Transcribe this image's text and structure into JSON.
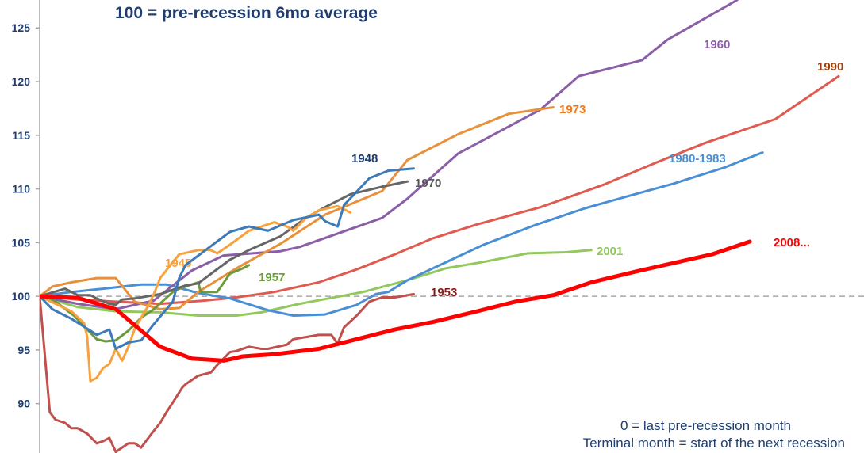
{
  "chart_data": {
    "type": "line",
    "subtitle": "100 = pre-recession 6mo average",
    "annotations": [
      "0 = last pre-recession month",
      "Terminal month = start of the next recession"
    ],
    "xlim": [
      0,
      130
    ],
    "ylim": [
      85.4,
      127.6
    ],
    "yticks": [
      90,
      95,
      100,
      105,
      110,
      115,
      120,
      125
    ],
    "reference_line": 100,
    "grid": false,
    "series": [
      {
        "name": "1953",
        "color": "#c0504d",
        "label_color": "#8b1a1a",
        "width": 3,
        "x": [
          0,
          1.6,
          2.5,
          4,
          5,
          6,
          7.5,
          9,
          10,
          11,
          12,
          14,
          15,
          16,
          17.5,
          19,
          20,
          21,
          22.5,
          23,
          25,
          27,
          28,
          30,
          31,
          33,
          35,
          36,
          39,
          40,
          42,
          44,
          46,
          47,
          48,
          50,
          52,
          54,
          56,
          59
        ],
        "y": [
          100,
          89.2,
          88.5,
          88.2,
          87.7,
          87.7,
          87.2,
          86.3,
          86.5,
          86.8,
          85.5,
          86.3,
          86.3,
          85.9,
          87.1,
          88.2,
          89.2,
          90.1,
          91.5,
          91.8,
          92.6,
          92.9,
          93.6,
          94.8,
          94.9,
          95.3,
          95.1,
          95.1,
          95.5,
          96,
          96.2,
          96.4,
          96.4,
          95.6,
          97.1,
          98.2,
          99.5,
          99.9,
          99.9,
          100.2
        ]
      },
      {
        "name": "2001",
        "color": "#92c85c",
        "label_color": "#8fc65a",
        "width": 3,
        "x": [
          0,
          6,
          12,
          19,
          25,
          31,
          35,
          41,
          51,
          58,
          64,
          70,
          77,
          83,
          87
        ],
        "y": [
          100,
          99,
          98.6,
          98.5,
          98.2,
          98.2,
          98.5,
          99.3,
          100.4,
          101.5,
          102.6,
          103.2,
          104,
          104.1,
          104.3
        ]
      },
      {
        "name": "1990",
        "color": "#e05a50",
        "label_color": "#a0410d",
        "width": 3,
        "x": [
          0,
          6,
          12,
          19,
          26,
          31,
          37,
          44,
          50,
          56,
          62,
          69,
          79,
          89,
          97,
          105,
          116,
          126
        ],
        "y": [
          100,
          99.7,
          99.5,
          99.3,
          99.6,
          99.9,
          100.4,
          101.3,
          102.5,
          103.9,
          105.4,
          106.7,
          108.3,
          110.4,
          112.4,
          114.3,
          116.5,
          120.5
        ]
      },
      {
        "name": "1980-1983",
        "color": "#4a8fd4",
        "label_color": "#4a8fd4",
        "width": 3,
        "x": [
          0,
          5,
          10,
          16,
          20,
          25,
          30,
          36,
          40,
          45,
          50,
          53,
          55,
          58,
          62,
          70,
          78,
          86,
          92,
          100,
          108,
          114
        ],
        "y": [
          100,
          100.4,
          100.7,
          101.1,
          101.1,
          100.3,
          99.8,
          98.7,
          98.2,
          98.3,
          99.2,
          100.2,
          100.4,
          101.5,
          102.6,
          104.8,
          106.6,
          108.2,
          109.2,
          110.5,
          112,
          113.4
        ]
      },
      {
        "name": "1960",
        "color": "#8b5ea8",
        "label_color": "#8b5ea8",
        "width": 3,
        "x": [
          0,
          6,
          12,
          18,
          24,
          29,
          38,
          41,
          54,
          58,
          66,
          79,
          85,
          95,
          99,
          110
        ],
        "y": [
          100,
          99.3,
          98.8,
          99.6,
          102.4,
          103.8,
          104.2,
          104.6,
          107.3,
          109.1,
          113.3,
          117.4,
          120.5,
          122,
          123.9,
          127.6
        ]
      },
      {
        "name": "1973",
        "color": "#e8913a",
        "label_color": "#f07a1a",
        "width": 3,
        "x": [
          0,
          2,
          5,
          9,
          12,
          15,
          19,
          22,
          25,
          31,
          38,
          45,
          54,
          58,
          66,
          74,
          81
        ],
        "y": [
          100,
          100.9,
          101.3,
          101.7,
          101.7,
          99.5,
          98.8,
          98.9,
          100.4,
          102.6,
          104.9,
          107.6,
          109.8,
          112.7,
          115.1,
          117,
          117.6
        ]
      },
      {
        "name": "1957",
        "color": "#6a9a3a",
        "label_color": "#6a9a3a",
        "width": 3,
        "x": [
          0,
          2.5,
          5.4,
          7.5,
          9,
          10.4,
          12,
          14,
          16,
          18,
          21,
          22,
          25,
          25.4,
          28,
          30,
          32,
          33
        ],
        "y": [
          100,
          99.5,
          98.2,
          96.9,
          96,
          95.8,
          95.9,
          96.8,
          98,
          98.8,
          100.4,
          100.7,
          101.3,
          100.4,
          100.4,
          102.1,
          102.6,
          102.9
        ]
      },
      {
        "name": "1970",
        "color": "#666666",
        "label_color": "#595959",
        "width": 3,
        "x": [
          0,
          4,
          6,
          8,
          9,
          11,
          12,
          13,
          15,
          19,
          23,
          25,
          30,
          33,
          38,
          42,
          45,
          49,
          54,
          58
        ],
        "y": [
          100,
          100.7,
          100.1,
          100.1,
          99.8,
          99.3,
          99.2,
          99.7,
          99.8,
          100.2,
          101,
          101.2,
          103.4,
          104.3,
          105.6,
          107.3,
          108.3,
          109.5,
          110.2,
          110.7
        ]
      },
      {
        "name": "1945",
        "color": "#f7a23e",
        "label_color": "#f7a23e",
        "width": 3,
        "x": [
          0,
          5,
          7,
          7.5,
          8,
          9,
          10,
          11,
          12,
          13,
          14,
          15,
          17,
          18,
          19,
          22,
          25,
          27,
          28,
          30,
          33,
          37,
          39,
          40,
          42,
          44,
          47,
          49
        ],
        "y": [
          100,
          98.6,
          97.5,
          96.2,
          92.1,
          92.4,
          93.3,
          93.7,
          95.1,
          94,
          95.3,
          97,
          99,
          100.2,
          101.7,
          103.9,
          104.3,
          104.3,
          104,
          104.8,
          106.1,
          106.9,
          106.5,
          106.1,
          107.3,
          108,
          108.4,
          107.8
        ]
      },
      {
        "name": "1948",
        "color": "#3d7ab8",
        "label_color": "#1f3d6e",
        "width": 3,
        "x": [
          0,
          2,
          5,
          8,
          9,
          11,
          12,
          14,
          16,
          18,
          21,
          22,
          23,
          30,
          33,
          36,
          40,
          44,
          45,
          47,
          48,
          52,
          55,
          59
        ],
        "y": [
          100,
          98.8,
          97.9,
          96.8,
          96.4,
          96.9,
          95.1,
          95.7,
          95.9,
          97.4,
          99.5,
          101.7,
          102.9,
          106,
          106.5,
          106.1,
          107.1,
          107.6,
          107,
          106.5,
          108.5,
          111,
          111.7,
          111.9
        ]
      },
      {
        "name": "2008...",
        "color": "#ff0000",
        "label_color": "#ff0000",
        "width": 5,
        "x": [
          0,
          6,
          12,
          19,
          24,
          29,
          32,
          37,
          44,
          50,
          56,
          62,
          69,
          75,
          81,
          87,
          94,
          100,
          106,
          112
        ],
        "y": [
          100,
          99.85,
          98.8,
          95.3,
          94.2,
          94,
          94.4,
          94.6,
          95.1,
          96,
          96.9,
          97.6,
          98.6,
          99.5,
          100.1,
          101.3,
          102.3,
          103.1,
          103.9,
          105.1
        ]
      }
    ]
  }
}
